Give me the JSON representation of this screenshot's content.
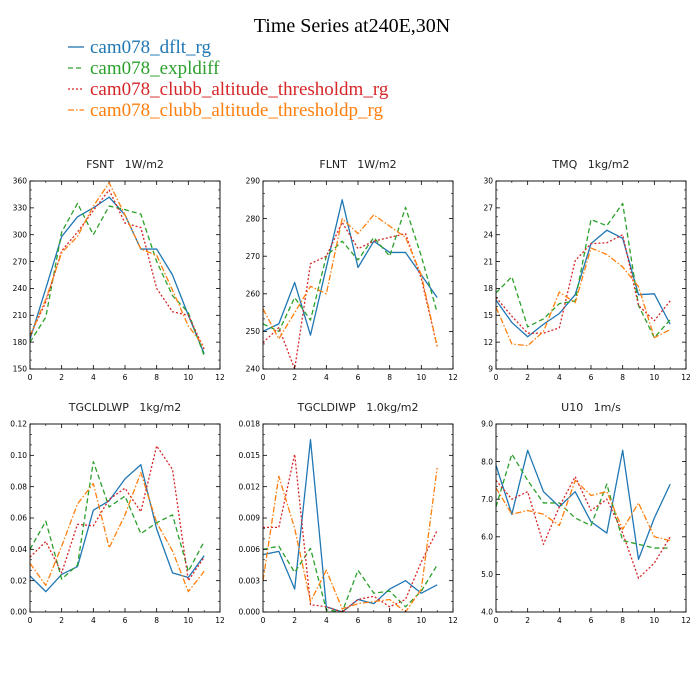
{
  "figure": {
    "title": "Time Series at240E,30N",
    "legend": [
      {
        "name": "cam078_dflt_rg",
        "color": "#1f77b4",
        "dash": "solid"
      },
      {
        "name": "cam078_expldiff",
        "color": "#2ca02c",
        "dash": "dashed"
      },
      {
        "name": "cam078_clubb_altitude_thresholdm_rg",
        "color": "#d62728",
        "dash": "dotted"
      },
      {
        "name": "cam078_clubb_altitude_thresholdp_rg",
        "color": "#ff7f0e",
        "dash": "dashdot"
      }
    ]
  },
  "chart_data": [
    {
      "type": "line",
      "title": "FSNT   1W/m2",
      "x": [
        0,
        1,
        2,
        3,
        4,
        5,
        6,
        7,
        8,
        9,
        10,
        11
      ],
      "xlim": [
        0,
        12
      ],
      "xticks": [
        0,
        2,
        4,
        6,
        8,
        10,
        12
      ],
      "xtick_labels": [
        "0",
        "2",
        "4",
        "6",
        "8",
        "10",
        "12"
      ],
      "ylim": [
        150,
        360
      ],
      "yticks": [
        150,
        180,
        210,
        240,
        270,
        300,
        330,
        360
      ],
      "ytick_labels": [
        "150",
        "180",
        "210",
        "240",
        "270",
        "300",
        "330",
        "360"
      ],
      "series": [
        {
          "name": "cam078_dflt_rg",
          "values": [
            183,
            240,
            298,
            320,
            330,
            342,
            322,
            284,
            284,
            255,
            210,
            167
          ]
        },
        {
          "name": "cam078_expldiff",
          "values": [
            180,
            208,
            303,
            335,
            300,
            332,
            328,
            323,
            270,
            232,
            213,
            165
          ]
        },
        {
          "name": "cam078_clubb_altitude_thresholdm_rg",
          "values": [
            187,
            225,
            282,
            303,
            327,
            350,
            313,
            308,
            240,
            214,
            210,
            172
          ]
        },
        {
          "name": "cam078_clubb_altitude_thresholdp_rg",
          "values": [
            187,
            228,
            280,
            298,
            332,
            358,
            322,
            284,
            277,
            238,
            198,
            175
          ]
        }
      ]
    },
    {
      "type": "line",
      "title": "FLNT   1W/m2",
      "x": [
        0,
        1,
        2,
        3,
        4,
        5,
        6,
        7,
        8,
        9,
        10,
        11
      ],
      "xlim": [
        0,
        12
      ],
      "xticks": [
        0,
        2,
        4,
        6,
        8,
        10,
        12
      ],
      "xtick_labels": [
        "0",
        "2",
        "4",
        "6",
        "8",
        "10",
        "12"
      ],
      "ylim": [
        240,
        290
      ],
      "yticks": [
        240,
        250,
        260,
        270,
        280,
        290
      ],
      "ytick_labels": [
        "240",
        "250",
        "260",
        "270",
        "280",
        "290"
      ],
      "series": [
        {
          "name": "cam078_dflt_rg",
          "values": [
            250,
            252,
            263,
            249,
            267,
            285,
            267,
            274,
            271,
            271,
            265,
            259
          ]
        },
        {
          "name": "cam078_expldiff",
          "values": [
            252,
            250,
            259,
            253,
            270,
            274,
            269,
            275,
            270,
            283,
            270,
            255
          ]
        },
        {
          "name": "cam078_clubb_altitude_thresholdm_rg",
          "values": [
            247,
            251,
            240,
            268,
            270,
            279,
            272,
            274,
            275,
            276,
            264,
            246
          ]
        },
        {
          "name": "cam078_clubb_altitude_thresholdp_rg",
          "values": [
            256,
            248,
            255,
            262,
            260,
            280,
            276,
            281,
            278,
            275,
            265,
            246
          ]
        }
      ]
    },
    {
      "type": "line",
      "title": "TMQ   1kg/m2",
      "x": [
        0,
        1,
        2,
        3,
        4,
        5,
        6,
        7,
        8,
        9,
        10,
        11
      ],
      "xlim": [
        0,
        12
      ],
      "xticks": [
        0,
        2,
        4,
        6,
        8,
        10,
        12
      ],
      "xtick_labels": [
        "0",
        "2",
        "4",
        "6",
        "8",
        "10",
        "12"
      ],
      "ylim": [
        9,
        30
      ],
      "yticks": [
        9,
        12,
        15,
        18,
        21,
        24,
        27,
        30
      ],
      "ytick_labels": [
        "9",
        "12",
        "15",
        "18",
        "21",
        "24",
        "27",
        "30"
      ],
      "series": [
        {
          "name": "cam078_dflt_rg",
          "values": [
            16.7,
            14.2,
            12.6,
            14.0,
            15.2,
            17.3,
            23.0,
            24.5,
            23.6,
            17.3,
            17.4,
            14.0
          ]
        },
        {
          "name": "cam078_expldiff",
          "values": [
            17.5,
            19.3,
            13.7,
            14.6,
            16.3,
            16.6,
            25.7,
            25.0,
            27.5,
            16.1,
            12.5,
            14.5
          ]
        },
        {
          "name": "cam078_clubb_altitude_thresholdm_rg",
          "values": [
            17.0,
            14.9,
            13.0,
            13.0,
            13.6,
            21.1,
            23.0,
            23.1,
            24.0,
            16.1,
            14.4,
            16.6
          ]
        },
        {
          "name": "cam078_clubb_altitude_thresholdp_rg",
          "values": [
            15.9,
            11.8,
            11.6,
            13.2,
            17.6,
            16.4,
            22.5,
            21.8,
            20.4,
            18.2,
            12.5,
            13.4
          ]
        }
      ]
    },
    {
      "type": "line",
      "title": "TGCLDLWP   1kg/m2",
      "x": [
        0,
        1,
        2,
        3,
        4,
        5,
        6,
        7,
        8,
        9,
        10,
        11
      ],
      "xlim": [
        0,
        12
      ],
      "xticks": [
        0,
        2,
        4,
        6,
        8,
        10,
        12
      ],
      "xtick_labels": [
        "0",
        "2",
        "4",
        "6",
        "8",
        "10",
        "12"
      ],
      "ylim": [
        0,
        0.12
      ],
      "yticks": [
        0,
        0.02,
        0.04,
        0.06,
        0.08,
        0.1,
        0.12
      ],
      "ytick_labels": [
        "0.00",
        "0.02",
        "0.04",
        "0.06",
        "0.08",
        "0.10",
        "0.12"
      ],
      "series": [
        {
          "name": "cam078_dflt_rg",
          "values": [
            0.023,
            0.013,
            0.024,
            0.029,
            0.065,
            0.071,
            0.085,
            0.094,
            0.053,
            0.025,
            0.022,
            0.036
          ]
        },
        {
          "name": "cam078_expldiff",
          "values": [
            0.04,
            0.058,
            0.021,
            0.03,
            0.096,
            0.067,
            0.074,
            0.05,
            0.057,
            0.062,
            0.026,
            0.045
          ]
        },
        {
          "name": "cam078_clubb_altitude_thresholdm_rg",
          "values": [
            0.035,
            0.045,
            0.025,
            0.056,
            0.055,
            0.072,
            0.079,
            0.064,
            0.106,
            0.091,
            0.02,
            0.035
          ]
        },
        {
          "name": "cam078_clubb_altitude_thresholdp_rg",
          "values": [
            0.031,
            0.017,
            0.042,
            0.069,
            0.082,
            0.041,
            0.062,
            0.089,
            0.057,
            0.039,
            0.013,
            0.026
          ]
        }
      ]
    },
    {
      "type": "line",
      "title": "TGCLDIWP   1.0kg/m2",
      "x": [
        0,
        1,
        2,
        3,
        4,
        5,
        6,
        7,
        8,
        9,
        10,
        11
      ],
      "xlim": [
        0,
        12
      ],
      "xticks": [
        0,
        2,
        4,
        6,
        8,
        10,
        12
      ],
      "xtick_labels": [
        "0",
        "2",
        "4",
        "6",
        "8",
        "10",
        "12"
      ],
      "ylim": [
        0,
        0.018
      ],
      "yticks": [
        0,
        0.003,
        0.006,
        0.009,
        0.012,
        0.015,
        0.018
      ],
      "ytick_labels": [
        "0.000",
        "0.003",
        "0.006",
        "0.009",
        "0.012",
        "0.015",
        "0.018"
      ],
      "series": [
        {
          "name": "cam078_dflt_rg",
          "values": [
            0.0055,
            0.0058,
            0.0022,
            0.0165,
            0.0005,
            0.0,
            0.0012,
            0.0008,
            0.0022,
            0.003,
            0.0018,
            0.0026
          ]
        },
        {
          "name": "cam078_expldiff",
          "values": [
            0.006,
            0.0063,
            0.0038,
            0.0061,
            0.0002,
            0.0,
            0.004,
            0.0018,
            0.002,
            0.0005,
            0.002,
            0.0045
          ]
        },
        {
          "name": "cam078_clubb_altitude_thresholdm_rg",
          "values": [
            0.0081,
            0.0081,
            0.0151,
            0.0007,
            0.0005,
            0.0,
            0.0012,
            0.0015,
            0.0005,
            0.0012,
            0.0048,
            0.0078
          ]
        },
        {
          "name": "cam078_clubb_altitude_thresholdp_rg",
          "values": [
            0.003,
            0.013,
            0.008,
            0.001,
            0.004,
            0.0003,
            0.0008,
            0.001,
            0.0012,
            0.0,
            0.0022,
            0.0138
          ]
        }
      ]
    },
    {
      "type": "line",
      "title": "U10   1m/s",
      "x": [
        0,
        1,
        2,
        3,
        4,
        5,
        6,
        7,
        8,
        9,
        10,
        11
      ],
      "xlim": [
        0,
        12
      ],
      "xticks": [
        0,
        2,
        4,
        6,
        8,
        10,
        12
      ],
      "xtick_labels": [
        "0",
        "2",
        "4",
        "6",
        "8",
        "10",
        "12"
      ],
      "ylim": [
        4,
        9
      ],
      "yticks": [
        4,
        5,
        6,
        7,
        8,
        9
      ],
      "ytick_labels": [
        "4.0",
        "5.0",
        "6.0",
        "7.0",
        "8.0",
        "9.0"
      ],
      "series": [
        {
          "name": "cam078_dflt_rg",
          "values": [
            7.9,
            6.6,
            8.3,
            7.2,
            6.8,
            7.2,
            6.4,
            6.1,
            8.3,
            5.4,
            6.5,
            7.4
          ]
        },
        {
          "name": "cam078_expldiff",
          "values": [
            6.8,
            8.2,
            7.5,
            6.9,
            6.9,
            6.5,
            6.3,
            7.4,
            5.9,
            5.8,
            5.7,
            5.7
          ]
        },
        {
          "name": "cam078_clubb_altitude_thresholdm_rg",
          "values": [
            7.5,
            7.0,
            7.2,
            5.8,
            6.8,
            7.6,
            6.7,
            7.0,
            6.1,
            4.9,
            5.3,
            6.0
          ]
        },
        {
          "name": "cam078_clubb_altitude_thresholdp_rg",
          "values": [
            7.3,
            6.6,
            6.7,
            6.6,
            6.3,
            7.5,
            7.1,
            7.2,
            6.2,
            6.9,
            6.0,
            5.9
          ]
        }
      ]
    }
  ]
}
